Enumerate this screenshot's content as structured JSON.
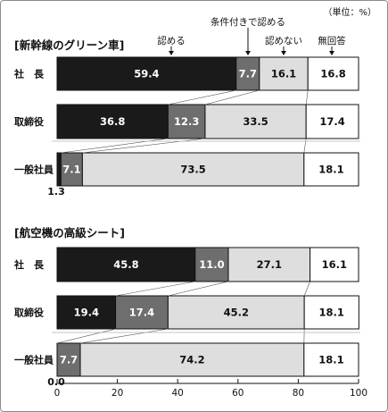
{
  "unit_label": "（単位：%）",
  "chart_data": [
    {
      "type": "bar",
      "orientation": "horizontal",
      "stacked": true,
      "title": "[新幹線のグリーン車]",
      "categories": [
        "社　長",
        "取締役",
        "一般社員"
      ],
      "series": [
        {
          "name": "認める",
          "values": [
            59.4,
            36.8,
            1.3
          ]
        },
        {
          "name": "条件付きで認める",
          "values": [
            7.7,
            12.3,
            7.1
          ]
        },
        {
          "name": "認めない",
          "values": [
            16.1,
            33.5,
            73.5
          ]
        },
        {
          "name": "無回答",
          "values": [
            16.8,
            17.4,
            18.1
          ]
        }
      ],
      "xlim": [
        0,
        100
      ],
      "grid": false
    },
    {
      "type": "bar",
      "orientation": "horizontal",
      "stacked": true,
      "title": "[航空機の高級シート]",
      "categories": [
        "社　長",
        "取締役",
        "一般社員"
      ],
      "series": [
        {
          "name": "認める",
          "values": [
            45.8,
            19.4,
            0.0
          ]
        },
        {
          "name": "条件付きで認める",
          "values": [
            11.0,
            17.4,
            7.7
          ]
        },
        {
          "name": "認めない",
          "values": [
            27.1,
            45.2,
            74.2
          ]
        },
        {
          "name": "無回答",
          "values": [
            16.1,
            18.1,
            18.1
          ]
        }
      ],
      "xlim": [
        0,
        100
      ],
      "xticks": [
        0,
        20,
        40,
        60,
        80,
        100
      ],
      "grid": false
    }
  ],
  "colors": {
    "認める": "#1a1a1a",
    "条件付きで認める": "#6e6e6e",
    "認めない": "#dedede",
    "無回答": "#ffffff"
  }
}
